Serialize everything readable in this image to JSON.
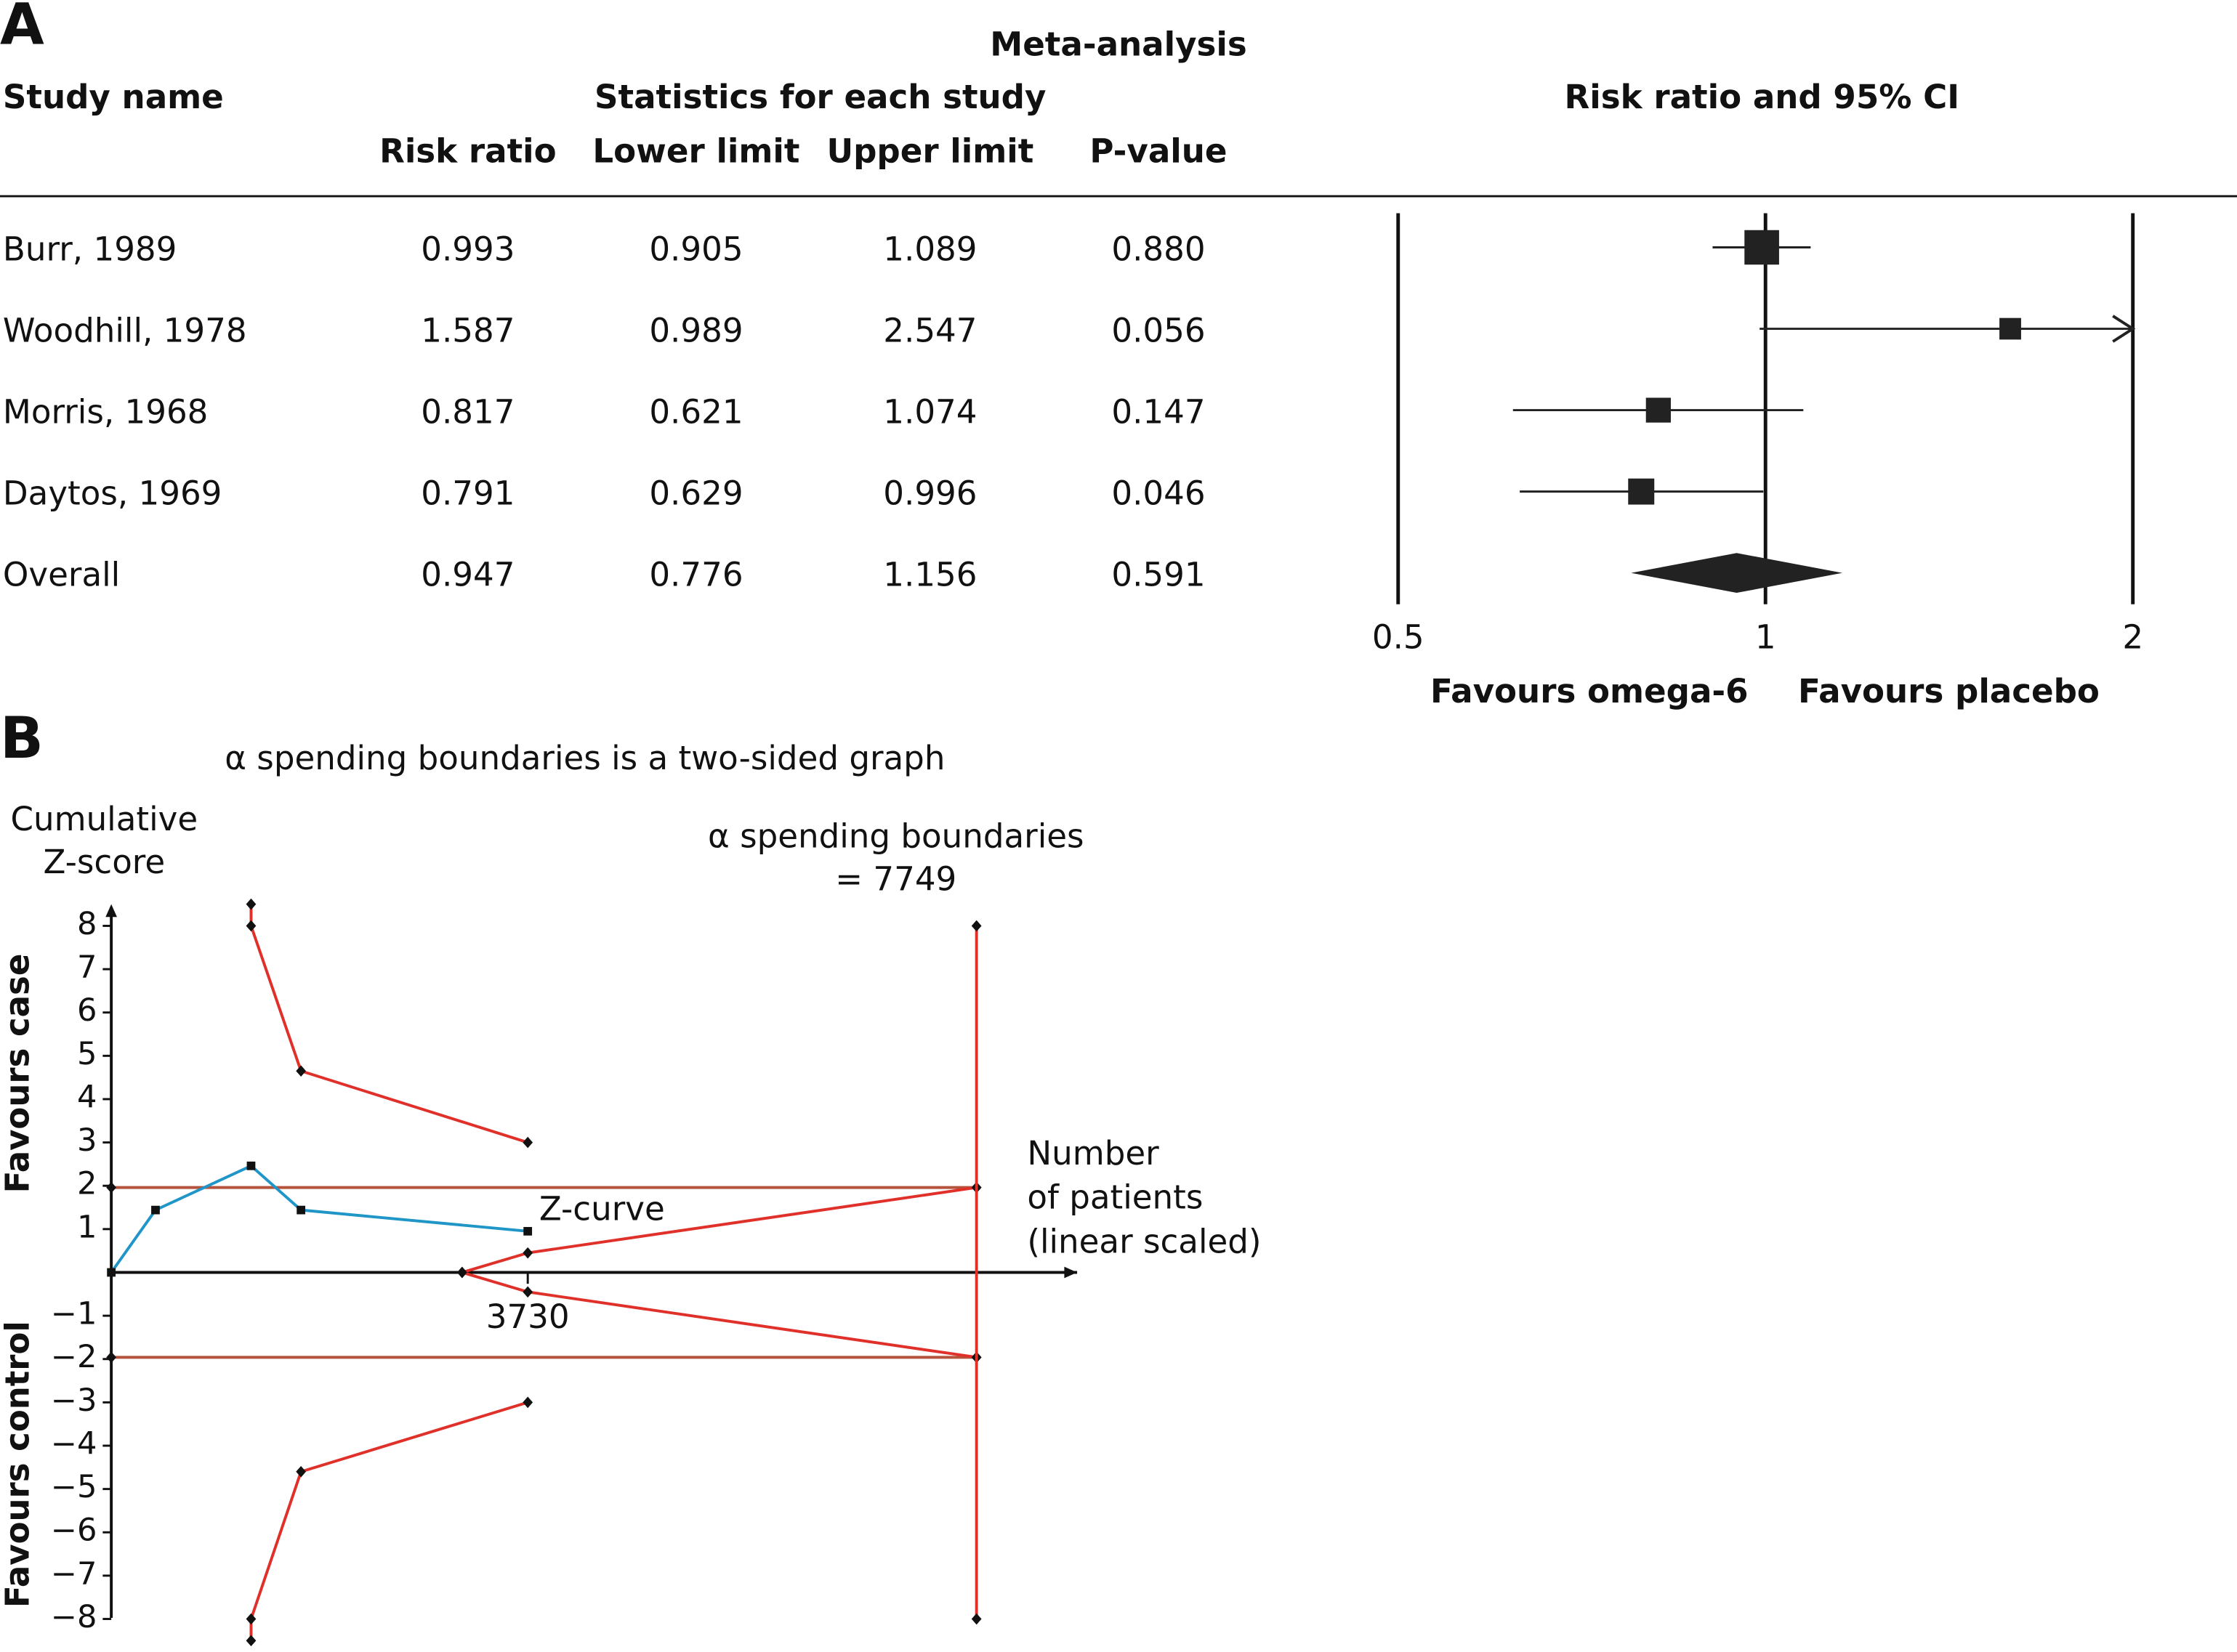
{
  "chart_data": [
    {
      "type": "forest",
      "panel": "A",
      "title": "Meta-analysis",
      "category_label": "Study name",
      "group_label": "Statistics for each study",
      "plot_title": "Risk ratio and 95% CI",
      "categories": [
        "Burr, 1989",
        "Woodhill, 1978",
        "Morris, 1968",
        "Daytos, 1969",
        "Overall"
      ],
      "series": [
        {
          "name": "Risk ratio",
          "values": [
            0.993,
            1.587,
            0.817,
            0.791,
            0.947
          ]
        },
        {
          "name": "Lower limit",
          "values": [
            0.905,
            0.989,
            0.621,
            0.629,
            0.776
          ]
        },
        {
          "name": "Upper limit",
          "values": [
            1.089,
            2.547,
            1.074,
            0.996,
            1.156
          ]
        },
        {
          "name": "P-value",
          "values": [
            0.88,
            0.056,
            0.147,
            0.046,
            0.591
          ],
          "value_labels": [
            "0.880",
            "0.056",
            "0.147",
            "0.046",
            "0.591"
          ]
        }
      ],
      "color": "#222222",
      "xscale": "log",
      "xlim": [
        0.5,
        2
      ],
      "xticks": [
        0.5,
        1,
        2
      ],
      "grid": true,
      "annotations": [
        "Favours omega-6",
        "Favours placebo"
      ]
    },
    {
      "type": "line",
      "panel": "B",
      "title": "α spending boundaries is a two-sided graph",
      "ylabel": [
        "Cumulative",
        "Z-score"
      ],
      "xlabel": [
        "Number",
        "of patients",
        "(linear scaled)"
      ],
      "annotations": [
        "α spending boundaries",
        "= 7749",
        "Favours case",
        "Favours control"
      ],
      "xlim": [
        0,
        8650
      ],
      "xticks": [
        3730
      ],
      "ylim": [
        -8.5,
        8.5
      ],
      "yticks": [
        8,
        7,
        6,
        5,
        4,
        3,
        2,
        1,
        {
          "value": -1,
          "label": "−1"
        },
        {
          "value": -2,
          "label": "−2"
        },
        {
          "value": -3,
          "label": "−3"
        },
        {
          "value": -4,
          "label": "−4"
        },
        {
          "value": -5,
          "label": "−5"
        },
        {
          "value": -6,
          "label": "−6"
        },
        {
          "value": -7,
          "label": "−7"
        },
        {
          "value": -8,
          "label": "−8"
        }
      ],
      "series": [
        {
          "color": "#b5533c",
          "marker": "diamond",
          "x": [
            0,
            7749
          ],
          "values": [
            1.96,
            1.96
          ]
        },
        {
          "color": "#b5533c",
          "marker": "diamond",
          "x": [
            0,
            7749
          ],
          "values": [
            -1.96,
            -1.96
          ]
        },
        {
          "color": "#e0302a",
          "marker": "diamond",
          "x": [
            1252,
            1252,
            1699,
            3730
          ],
          "values": [
            8.5,
            8,
            4.65,
            3.0
          ]
        },
        {
          "color": "#e0302a",
          "marker": "diamond",
          "x": [
            1252,
            1252,
            1699,
            3730
          ],
          "values": [
            -8.5,
            -8,
            -4.6,
            -3.0
          ]
        },
        {
          "color": "#e0302a",
          "marker": "diamond",
          "x": [
            3142,
            3730,
            7749
          ],
          "values": [
            0,
            0.45,
            1.96
          ]
        },
        {
          "color": "#e0302a",
          "marker": "diamond",
          "x": [
            3142,
            3730,
            7749
          ],
          "values": [
            0,
            -0.45,
            -1.96
          ]
        },
        {
          "color": "#e0302a",
          "marker": "diamond",
          "x": [
            7749,
            7749
          ],
          "values": [
            8,
            -8
          ]
        },
        {
          "name": "Z-curve",
          "color": "#1f95c8",
          "marker": "square",
          "x": [
            0,
            396,
            1252,
            1699,
            3730
          ],
          "values": [
            0,
            1.44,
            2.46,
            1.44,
            0.95
          ]
        }
      ]
    }
  ]
}
